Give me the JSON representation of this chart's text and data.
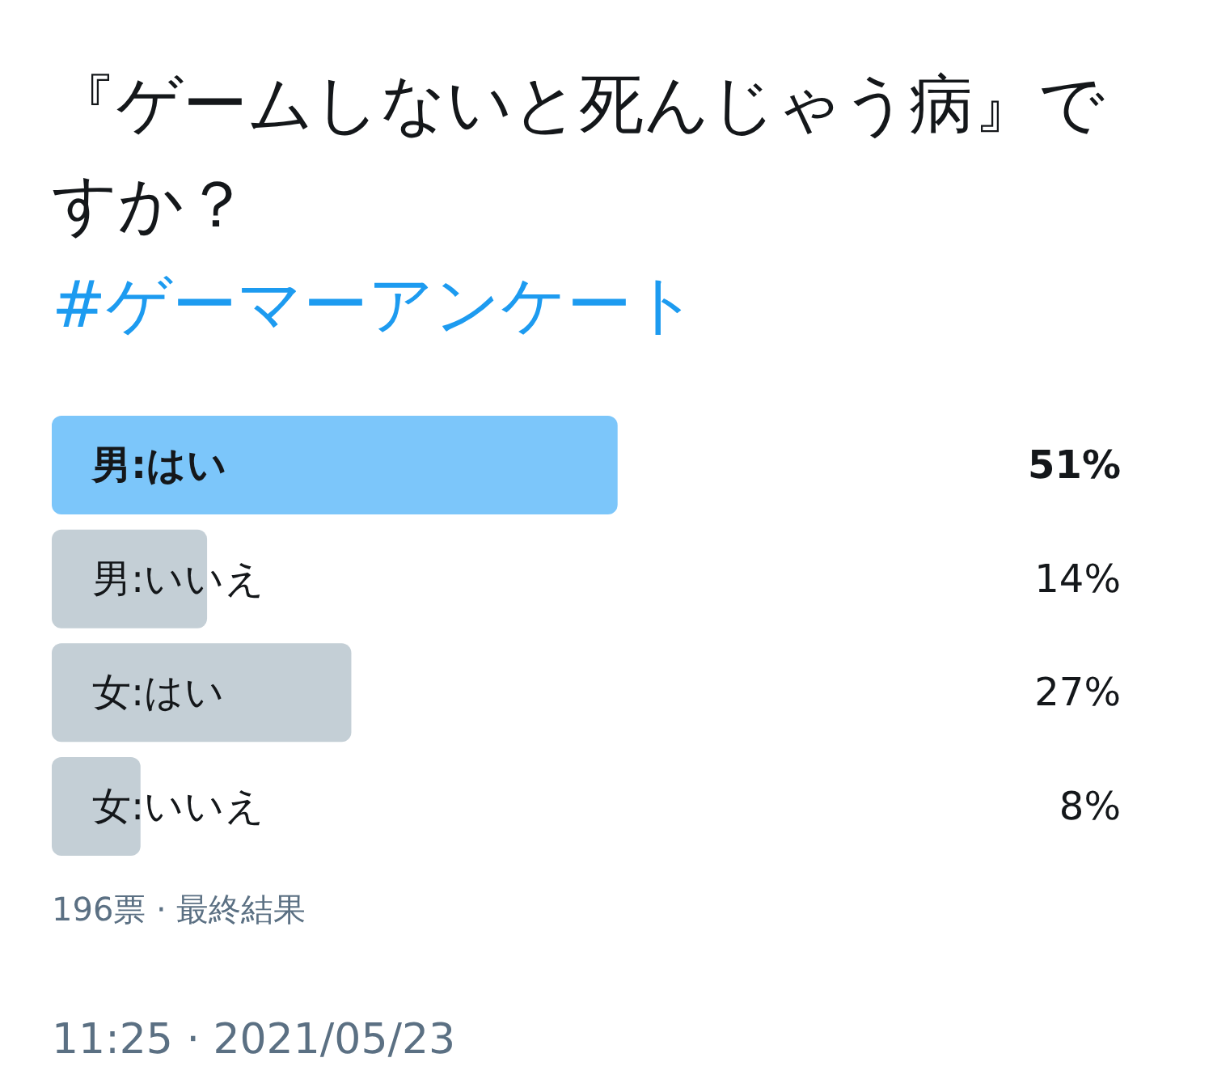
{
  "chart_data": {
    "type": "bar",
    "orientation": "horizontal",
    "title": "『ゲームしないと死んじゃう病』ですか？",
    "subtitle": "#ゲーマーアンケート",
    "categories": [
      "男:はい",
      "男:いいえ",
      "女:はい",
      "女:いいえ"
    ],
    "values": [
      51,
      14,
      27,
      8
    ],
    "value_labels": [
      "51%",
      "14%",
      "27%",
      "8%"
    ],
    "colors": [
      "#7cc6fa",
      "#c4cfd6",
      "#c4cfd6",
      "#c4cfd6"
    ],
    "annotations": [
      "196票 · 最終結果",
      "11:25 · 2021/05/23"
    ]
  }
}
